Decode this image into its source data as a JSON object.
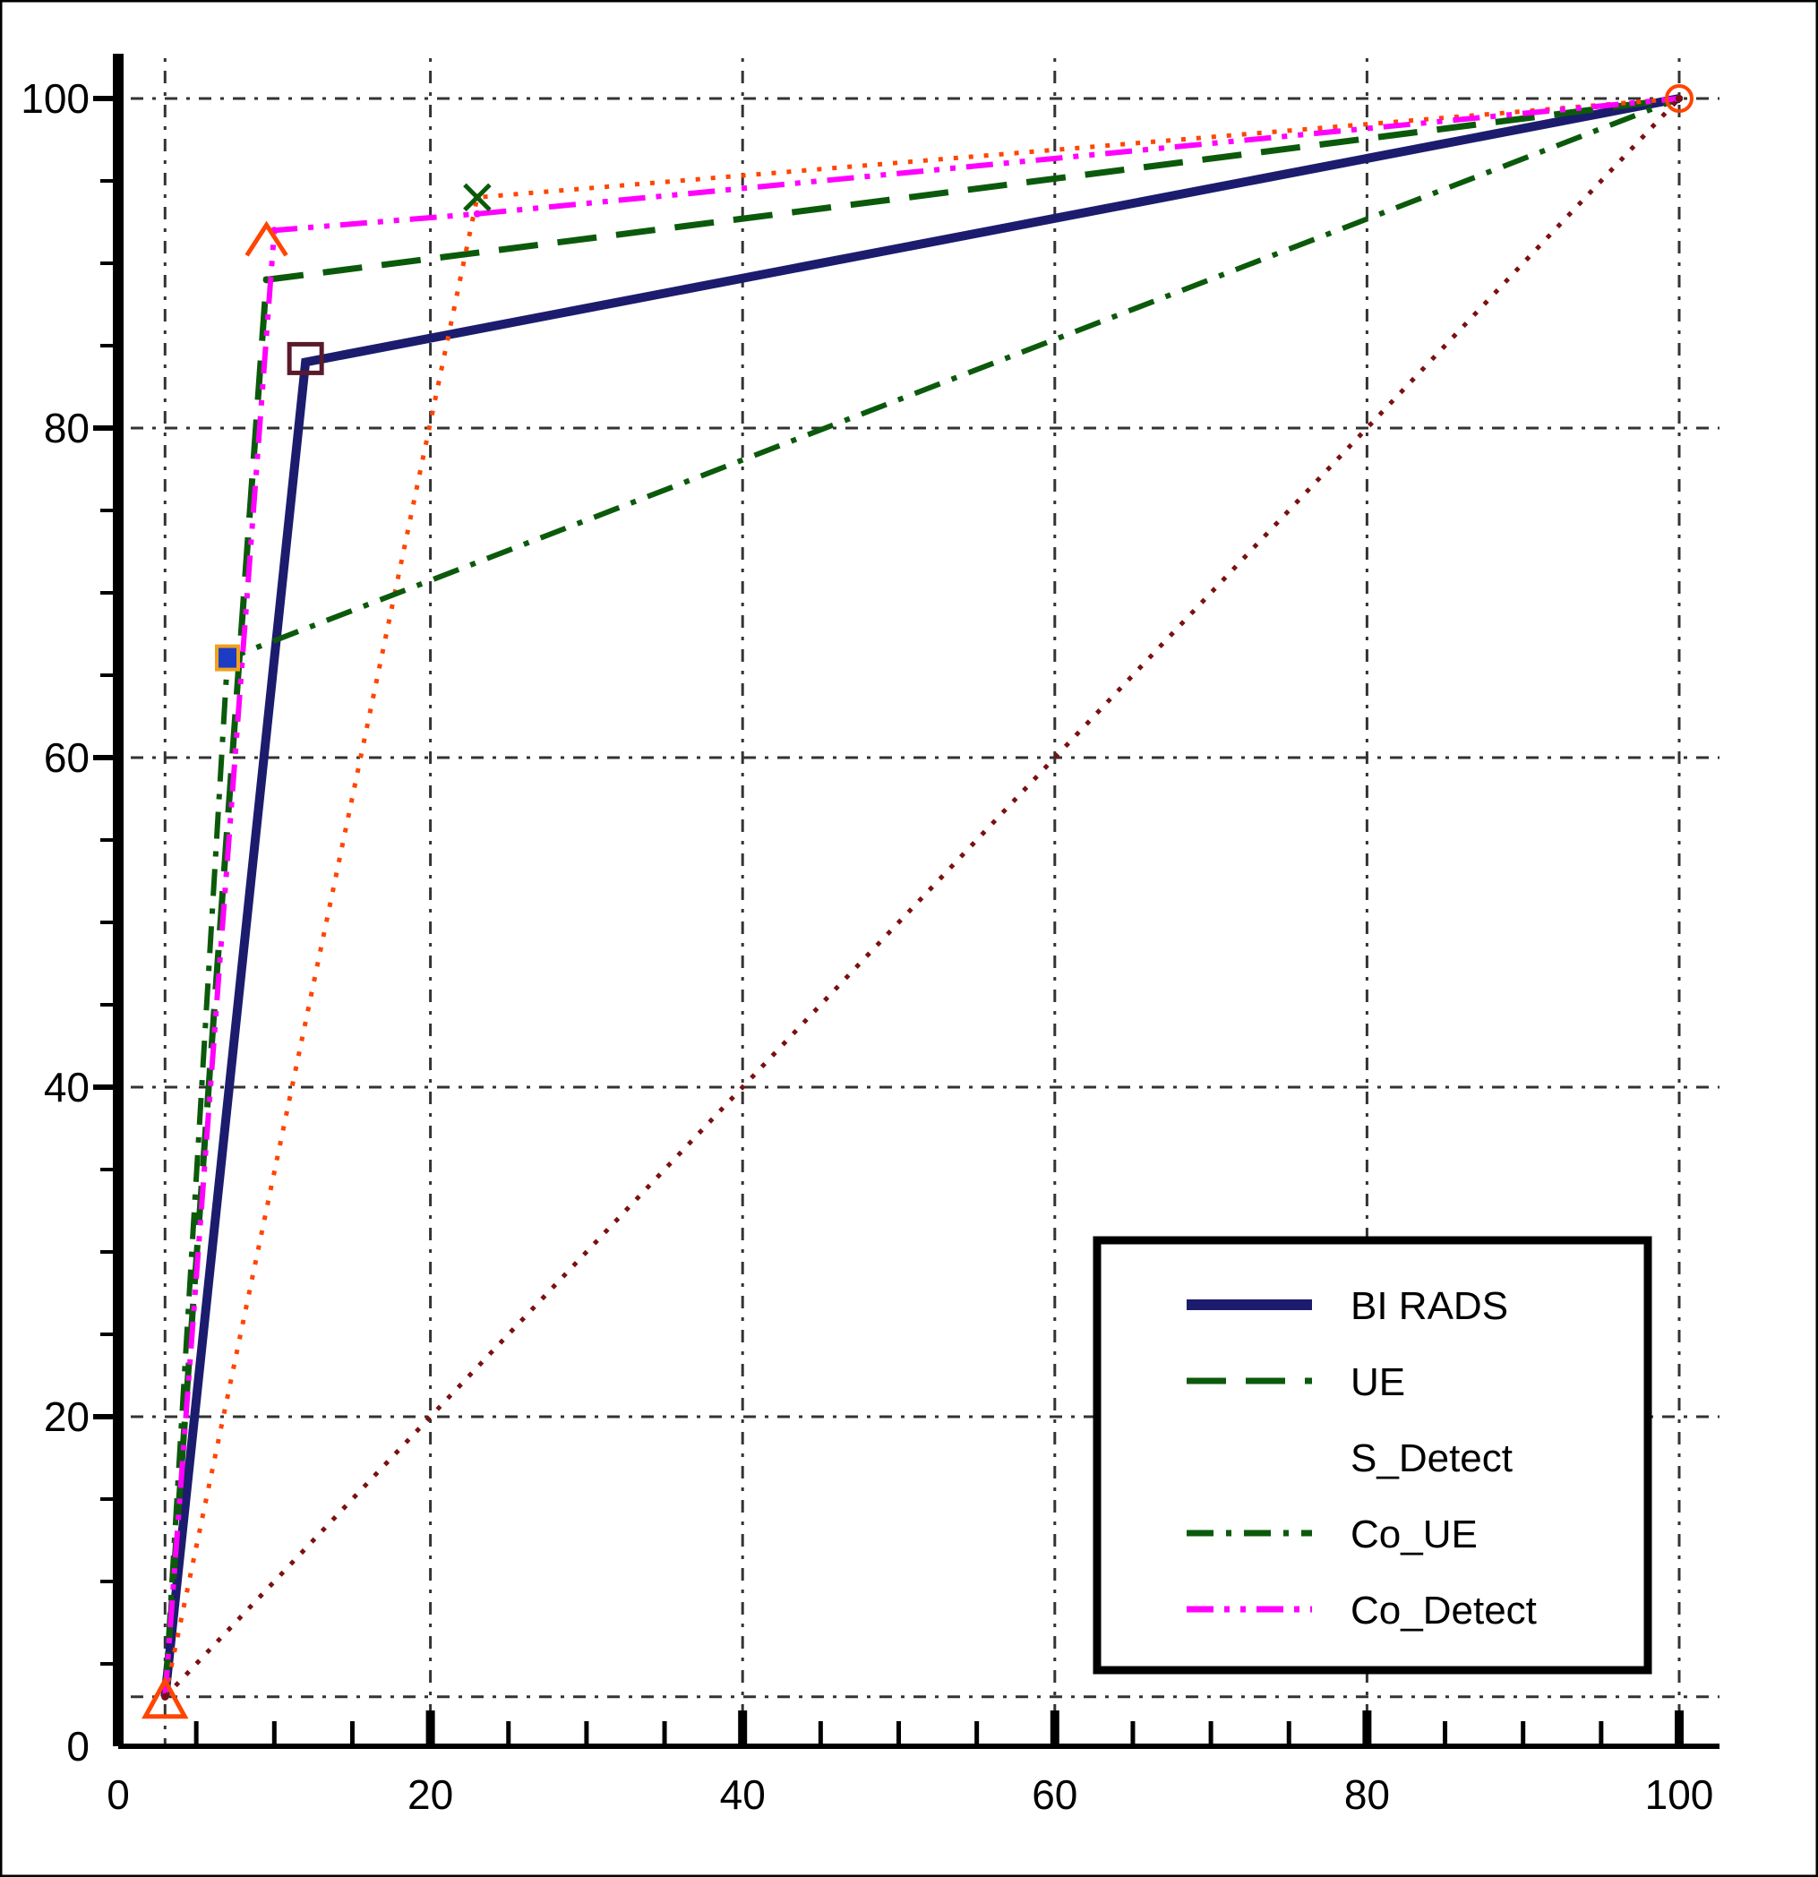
{
  "chart_data": {
    "type": "line",
    "title": "",
    "xlabel": "",
    "ylabel": "",
    "xlim": [
      0,
      100
    ],
    "ylim": [
      0,
      100
    ],
    "x_ticks": [
      0,
      20,
      40,
      60,
      80,
      100
    ],
    "y_ticks": [
      0,
      20,
      40,
      60,
      80,
      100
    ],
    "x_tick_labels": [
      "0",
      "20",
      "40",
      "60",
      "80",
      "100"
    ],
    "y_tick_labels": [
      "0",
      "20",
      "40",
      "60",
      "80",
      "100"
    ],
    "grid": true,
    "legend_position": "bottom-right",
    "series": [
      {
        "name": "BI RADS",
        "color": "#1c1c6e",
        "style": "solid",
        "x": [
          3,
          12,
          100
        ],
        "y": [
          3,
          84,
          100
        ]
      },
      {
        "name": "UE",
        "color": "#0b5a0b",
        "style": "dashed",
        "x": [
          3,
          9.5,
          100
        ],
        "y": [
          3,
          89,
          100
        ]
      },
      {
        "name": "S_Detect",
        "color": "#ff4500",
        "style": "dotted",
        "x": [
          3,
          23,
          100
        ],
        "y": [
          3,
          94,
          100
        ]
      },
      {
        "name": "Co_UE",
        "color": "#0b5a0b",
        "style": "dash-dot",
        "x": [
          3,
          7,
          100
        ],
        "y": [
          3,
          66,
          100
        ]
      },
      {
        "name": "Co_Detect",
        "color": "#ff00ff",
        "style": "dash-dot-dot",
        "x": [
          3,
          10,
          23,
          100
        ],
        "y": [
          3,
          92,
          93,
          100
        ]
      },
      {
        "name": "",
        "color": "#7a1010",
        "style": "dotted",
        "x": [
          3,
          100
        ],
        "y": [
          3,
          100
        ]
      }
    ]
  }
}
